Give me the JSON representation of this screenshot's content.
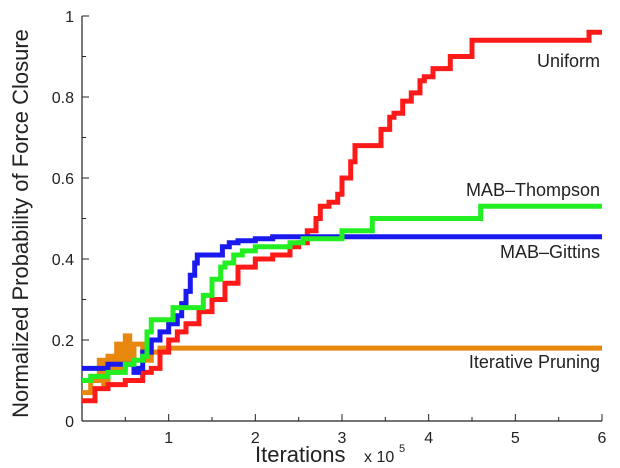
{
  "chart_data": {
    "type": "line",
    "title": "",
    "xlabel": "Iterations",
    "xlabel_suffix": "x 10",
    "xlabel_exponent": "5",
    "ylabel": "Normalized Probability of Force Closure",
    "xlim": [
      0,
      6
    ],
    "ylim": [
      0,
      1
    ],
    "xticks": [
      1,
      2,
      3,
      4,
      5,
      6
    ],
    "yticks": [
      0,
      0.2,
      0.4,
      0.6,
      0.8,
      1
    ],
    "ytick_labels": [
      "0",
      "0.2",
      "0.4",
      "0.6",
      "0.8",
      "1"
    ],
    "grid": false,
    "legend": "inline labels at right",
    "series": [
      {
        "name": "Uniform",
        "color": "#ff1a1a",
        "points": [
          [
            0.0,
            0.05
          ],
          [
            0.15,
            0.08
          ],
          [
            0.3,
            0.09
          ],
          [
            0.5,
            0.1
          ],
          [
            0.7,
            0.12
          ],
          [
            0.8,
            0.13
          ],
          [
            0.9,
            0.17
          ],
          [
            1.0,
            0.2
          ],
          [
            1.1,
            0.22
          ],
          [
            1.2,
            0.24
          ],
          [
            1.35,
            0.27
          ],
          [
            1.5,
            0.3
          ],
          [
            1.65,
            0.34
          ],
          [
            1.8,
            0.38
          ],
          [
            2.0,
            0.4
          ],
          [
            2.2,
            0.41
          ],
          [
            2.4,
            0.43
          ],
          [
            2.5,
            0.44
          ],
          [
            2.6,
            0.47
          ],
          [
            2.7,
            0.5
          ],
          [
            2.75,
            0.53
          ],
          [
            2.85,
            0.54
          ],
          [
            2.95,
            0.56
          ],
          [
            3.0,
            0.6
          ],
          [
            3.1,
            0.64
          ],
          [
            3.15,
            0.68
          ],
          [
            3.35,
            0.68
          ],
          [
            3.45,
            0.72
          ],
          [
            3.55,
            0.75
          ],
          [
            3.6,
            0.76
          ],
          [
            3.7,
            0.79
          ],
          [
            3.8,
            0.81
          ],
          [
            3.9,
            0.84
          ],
          [
            3.95,
            0.85
          ],
          [
            4.05,
            0.87
          ],
          [
            4.15,
            0.87
          ],
          [
            4.25,
            0.9
          ],
          [
            4.45,
            0.9
          ],
          [
            4.5,
            0.94
          ],
          [
            5.8,
            0.94
          ],
          [
            5.85,
            0.96
          ],
          [
            6.0,
            0.96
          ]
        ]
      },
      {
        "name": "MAB–Thompson",
        "color": "#22ee22",
        "points": [
          [
            0.0,
            0.1
          ],
          [
            0.1,
            0.11
          ],
          [
            0.3,
            0.12
          ],
          [
            0.5,
            0.14
          ],
          [
            0.6,
            0.15
          ],
          [
            0.7,
            0.16
          ],
          [
            0.75,
            0.22
          ],
          [
            0.8,
            0.25
          ],
          [
            1.0,
            0.25
          ],
          [
            1.05,
            0.28
          ],
          [
            1.3,
            0.28
          ],
          [
            1.4,
            0.31
          ],
          [
            1.5,
            0.35
          ],
          [
            1.6,
            0.38
          ],
          [
            1.65,
            0.39
          ],
          [
            1.75,
            0.41
          ],
          [
            1.85,
            0.42
          ],
          [
            2.0,
            0.43
          ],
          [
            2.3,
            0.43
          ],
          [
            2.4,
            0.44
          ],
          [
            2.55,
            0.45
          ],
          [
            2.95,
            0.45
          ],
          [
            3.0,
            0.47
          ],
          [
            3.3,
            0.47
          ],
          [
            3.35,
            0.5
          ],
          [
            4.55,
            0.5
          ],
          [
            4.6,
            0.53
          ],
          [
            6.0,
            0.53
          ]
        ]
      },
      {
        "name": "MAB–Gittins",
        "color": "#1a1aee",
        "points": [
          [
            0.0,
            0.13
          ],
          [
            0.3,
            0.14
          ],
          [
            0.55,
            0.14
          ],
          [
            0.6,
            0.12
          ],
          [
            0.65,
            0.13
          ],
          [
            0.7,
            0.17
          ],
          [
            0.8,
            0.2
          ],
          [
            0.9,
            0.22
          ],
          [
            1.0,
            0.24
          ],
          [
            1.1,
            0.26
          ],
          [
            1.15,
            0.29
          ],
          [
            1.2,
            0.32
          ],
          [
            1.25,
            0.36
          ],
          [
            1.3,
            0.39
          ],
          [
            1.33,
            0.41
          ],
          [
            1.6,
            0.41
          ],
          [
            1.62,
            0.43
          ],
          [
            1.7,
            0.44
          ],
          [
            1.8,
            0.445
          ],
          [
            2.0,
            0.45
          ],
          [
            2.2,
            0.455
          ],
          [
            6.0,
            0.455
          ]
        ]
      },
      {
        "name": "Iterative Pruning",
        "color": "#e8870e",
        "points": [
          [
            0.0,
            0.07
          ],
          [
            0.1,
            0.1
          ],
          [
            0.2,
            0.15
          ],
          [
            0.25,
            0.09
          ],
          [
            0.3,
            0.16
          ],
          [
            0.35,
            0.12
          ],
          [
            0.4,
            0.19
          ],
          [
            0.45,
            0.13
          ],
          [
            0.5,
            0.21
          ],
          [
            0.55,
            0.14
          ],
          [
            0.6,
            0.19
          ],
          [
            0.7,
            0.15
          ],
          [
            0.8,
            0.17
          ],
          [
            0.9,
            0.18
          ],
          [
            0.95,
            0.18
          ],
          [
            6.0,
            0.18
          ]
        ]
      }
    ]
  }
}
